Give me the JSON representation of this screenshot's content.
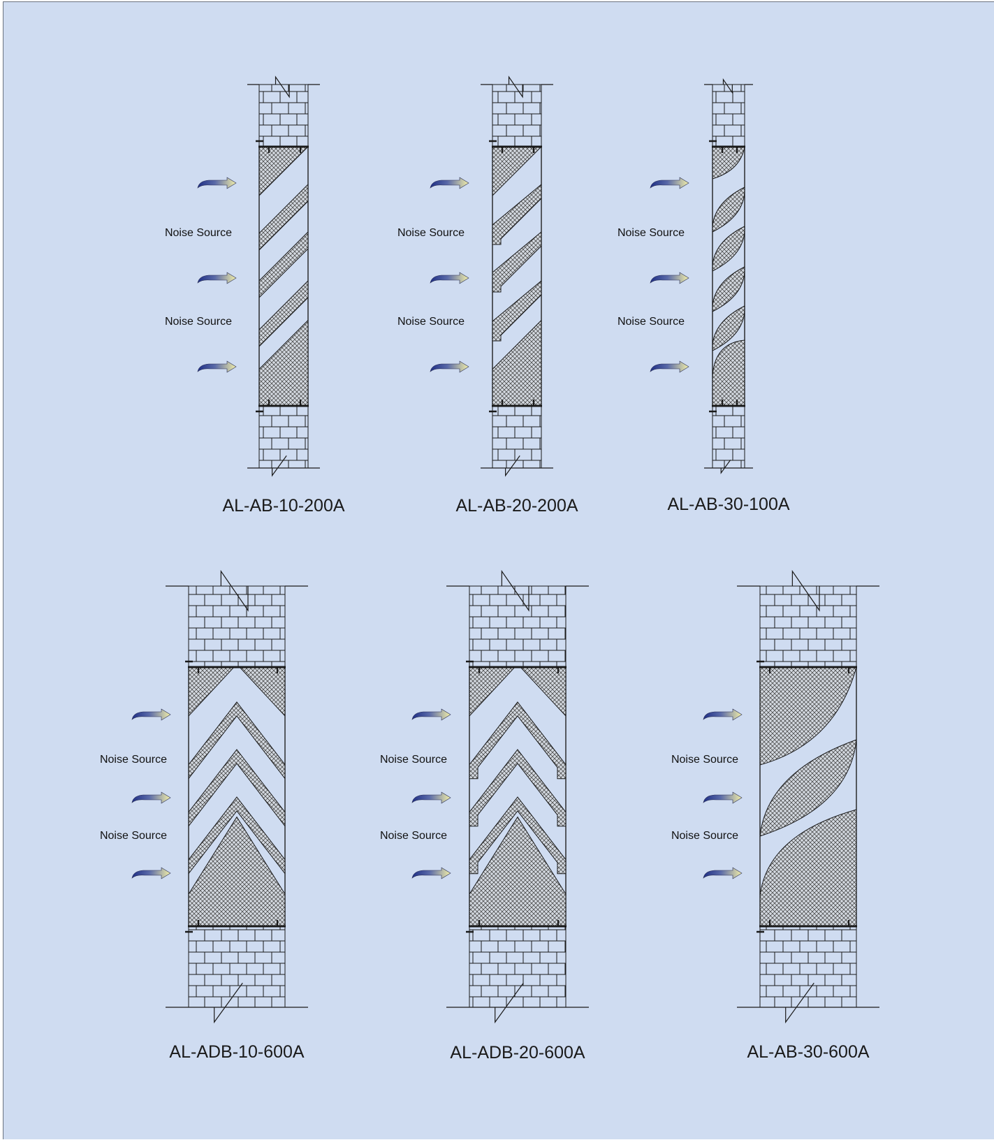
{
  "colors": {
    "background": "#cfdcf1",
    "line": "#1a1a1a",
    "hatch_fill": "#d4d9e0",
    "arrow_dark": "#1f2f86",
    "arrow_light": "#f3efa8"
  },
  "noise_label": "Noise Source",
  "icons": {
    "brick_wall": "brick-wall-section",
    "break_line": "break-symbol",
    "arrow": "sound-arrow-icon"
  },
  "panels": [
    {
      "id": "al-ab-10-200a",
      "model": "AL-AB-10-200A",
      "baffle_shape": "diagonal-straight",
      "noise_labels": [
        "Noise Source",
        "Noise Source"
      ]
    },
    {
      "id": "al-ab-20-200a",
      "model": "AL-AB-20-200A",
      "baffle_shape": "diagonal-stepped",
      "noise_labels": [
        "Noise Source",
        "Noise Source"
      ]
    },
    {
      "id": "al-ab-30-100a",
      "model": "AL-AB-30-100A",
      "baffle_shape": "lens",
      "noise_labels": [
        "Noise Source",
        "Noise Source"
      ]
    },
    {
      "id": "al-adb-10-600a",
      "model": "AL-ADB-10-600A",
      "baffle_shape": "chevron-straight",
      "noise_labels": [
        "Noise Source",
        "Noise Source"
      ]
    },
    {
      "id": "al-adb-20-600a",
      "model": "AL-ADB-20-600A",
      "baffle_shape": "chevron-stepped",
      "noise_labels": [
        "Noise Source",
        "Noise Source"
      ]
    },
    {
      "id": "al-ab-30-600a",
      "model": "AL-AB-30-600A",
      "baffle_shape": "lens-wide",
      "noise_labels": [
        "Noise Source",
        "Noise Source"
      ]
    }
  ]
}
